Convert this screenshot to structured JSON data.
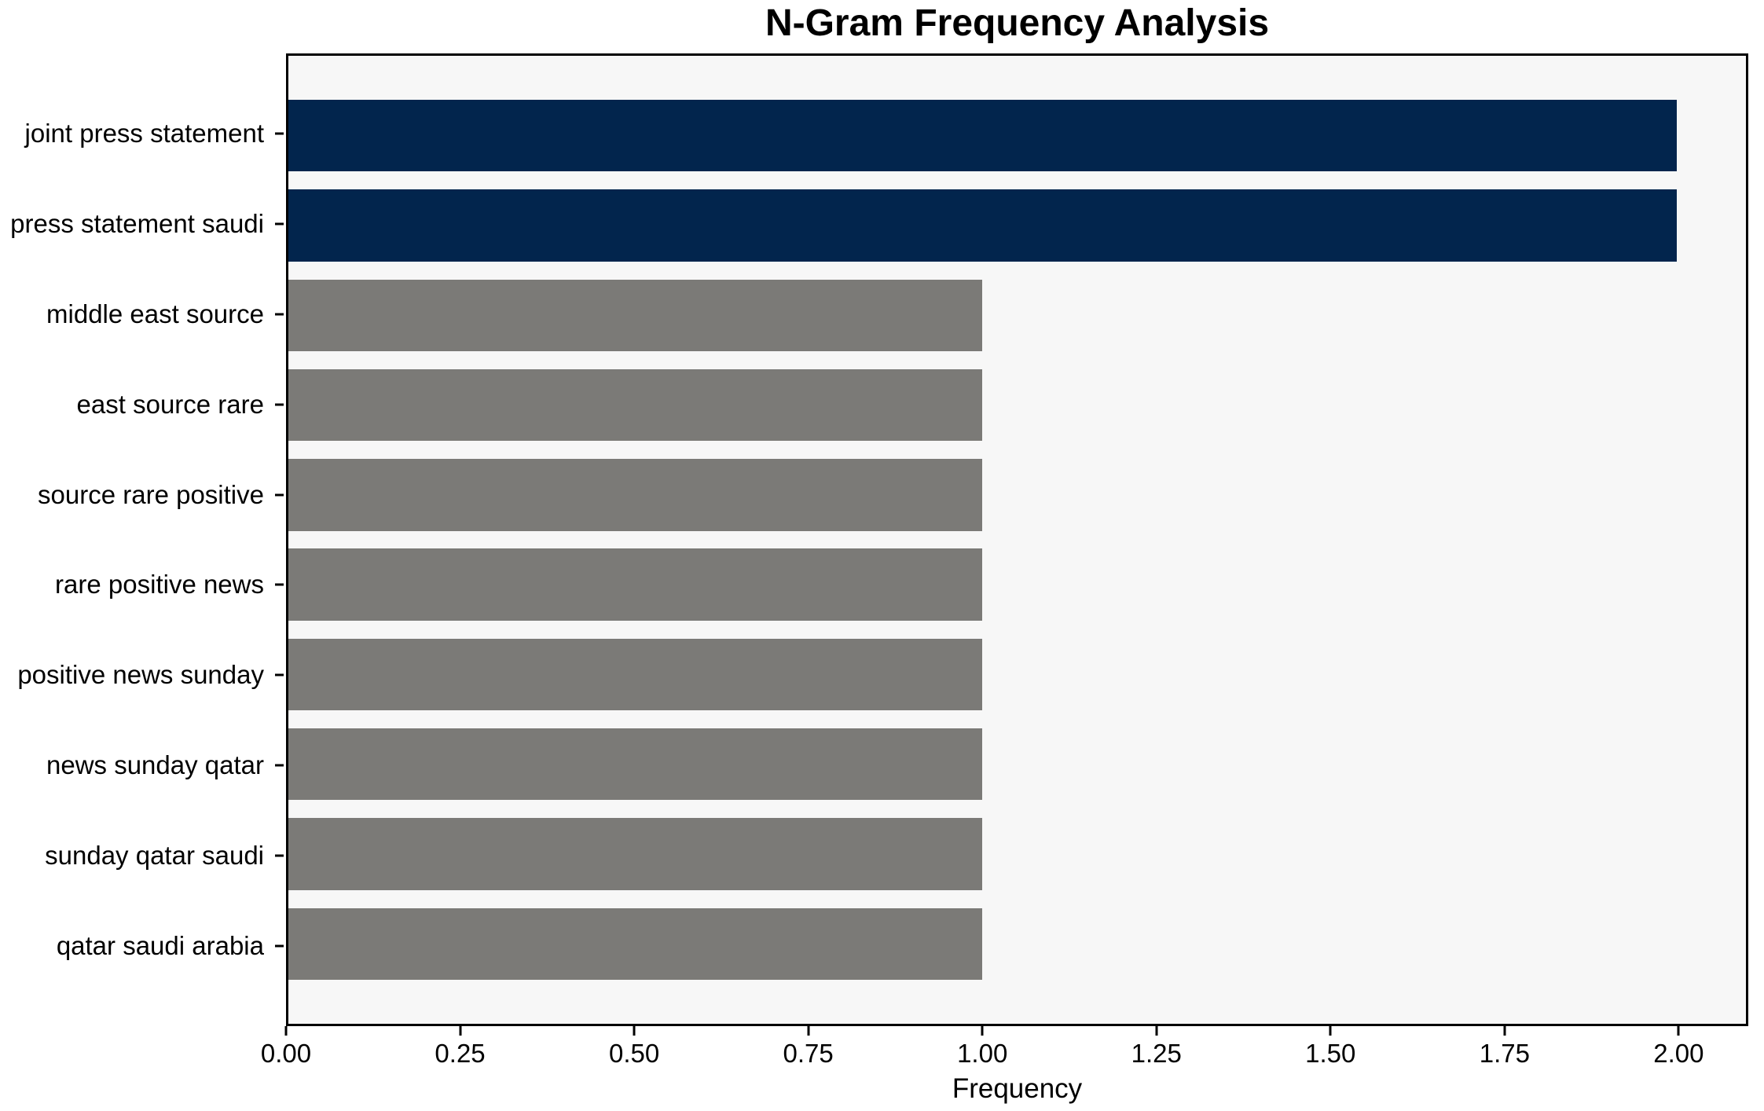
{
  "chart_data": {
    "type": "bar",
    "orientation": "horizontal",
    "title": "N-Gram Frequency Analysis",
    "xlabel": "Frequency",
    "ylabel": "",
    "categories": [
      "joint press statement",
      "press statement saudi",
      "middle east source",
      "east source rare",
      "source rare positive",
      "rare positive news",
      "positive news sunday",
      "news sunday qatar",
      "sunday qatar saudi",
      "qatar saudi arabia"
    ],
    "values": [
      2,
      2,
      1,
      1,
      1,
      1,
      1,
      1,
      1,
      1
    ],
    "bar_colors": [
      "#02254d",
      "#02254d",
      "#7b7a77",
      "#7b7a77",
      "#7b7a77",
      "#7b7a77",
      "#7b7a77",
      "#7b7a77",
      "#7b7a77",
      "#7b7a77"
    ],
    "xlim": [
      0,
      2.1
    ],
    "xticks": [
      0,
      0.25,
      0.5,
      0.75,
      1.0,
      1.25,
      1.5,
      1.75,
      2.0
    ],
    "xtick_labels": [
      "0.00",
      "0.25",
      "0.50",
      "0.75",
      "1.00",
      "1.25",
      "1.50",
      "1.75",
      "2.00"
    ],
    "grid": false,
    "legend": null,
    "colors": {
      "highlight": "#02254d",
      "muted": "#7b7a77",
      "plot_background": "#f7f7f7",
      "figure_background": "#ffffff",
      "axis": "#000000"
    },
    "layout": {
      "bar_height_units": 0.8,
      "row_pitch_units": 1.0,
      "edge_margin_units": 0.49
    }
  }
}
